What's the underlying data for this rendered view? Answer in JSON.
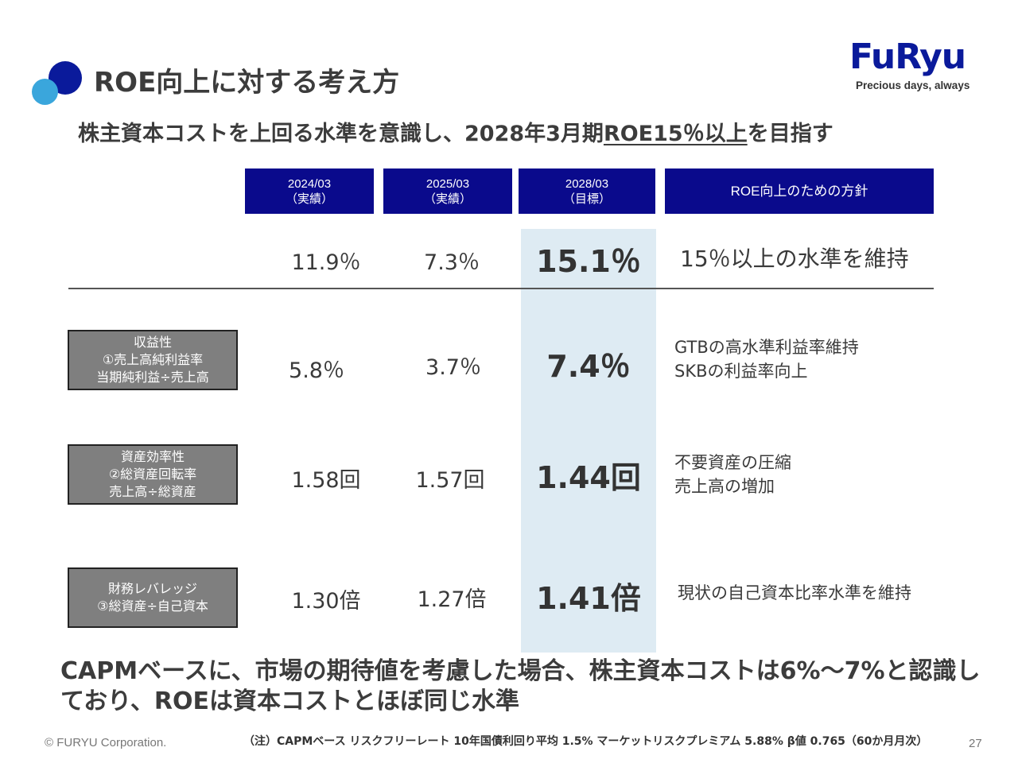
{
  "header": {
    "title": "ROE向上に対する考え方",
    "headline_pre": "株主資本コストを上回る水準を意識し、2028年3月期",
    "headline_underlined": "ROE15％以上",
    "headline_post": "を目指す"
  },
  "logo": {
    "word": "FuRyu",
    "tagline": "Precious days, always"
  },
  "columns": [
    {
      "period": "2024/03",
      "kind": "（実績）"
    },
    {
      "period": "2025/03",
      "kind": "（実績）"
    },
    {
      "period": "2028/03",
      "kind": "（目標）"
    },
    {
      "period": "ROE向上のための方針",
      "kind": ""
    }
  ],
  "rows": [
    {
      "label": [
        "",
        "",
        ""
      ],
      "v2024": "11.9％",
      "v2025": "7.3％",
      "v2028": "15.1％",
      "policy": [
        "15％以上の水準を維持"
      ]
    },
    {
      "label": [
        "収益性",
        "①売上高純利益率",
        "当期純利益÷売上高"
      ],
      "v2024": "5.8％",
      "v2025": "3.7％",
      "v2028": "7.4％",
      "policy": [
        "GTBの高水準利益率維持",
        "SKBの利益率向上"
      ]
    },
    {
      "label": [
        "資産効率性",
        "②総資産回転率",
        "売上高÷総資産"
      ],
      "v2024": "1.58回",
      "v2025": "1.57回",
      "v2028": "1.44回",
      "policy": [
        "不要資産の圧縮",
        "売上高の増加"
      ]
    },
    {
      "label": [
        "財務レバレッジ",
        "③総資産÷自己資本",
        ""
      ],
      "v2024": "1.30倍",
      "v2025": "1.27倍",
      "v2028": "1.41倍",
      "policy": [
        "現状の自己資本比率水準を維持"
      ]
    }
  ],
  "conclusion": "CAPMベースに、市場の期待値を考慮した場合、株主資本コストは6%～7%と認識しており、ROEは資本コストとほぼ同じ水準",
  "footer": {
    "copyright": "© FURYU Corporation.",
    "note": "（注）CAPMベース  リスクフリーレート  10年国債利回り平均  1.5% マーケットリスクプレミアム 5.88% β値  0.765（60か月月次）",
    "page": "27"
  },
  "colors": {
    "navy": "#0a0a8c",
    "brand": "#0a1a9b",
    "accent": "#3aa6dc",
    "highlight": "#deebf3",
    "label_bg": "#7f7f7f"
  }
}
